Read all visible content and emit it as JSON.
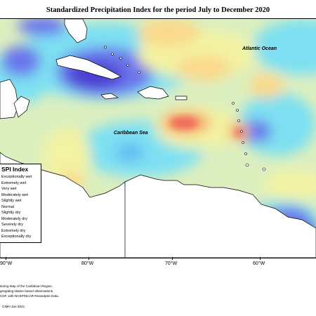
{
  "title": "Standardized Precipitation Index for the period July to December 2020",
  "labels": {
    "atlantic": "Atlantic Ocean",
    "caribbean": "Caribbean Sea"
  },
  "legend": {
    "title": "SPI Index",
    "items": [
      {
        "label": "Exceptionally wet",
        "color": "#4b3fd1"
      },
      {
        "label": "Extremely wet",
        "color": "#6a74ec"
      },
      {
        "label": "Very wet",
        "color": "#5fb6f2"
      },
      {
        "label": "Moderately wet",
        "color": "#7ee0f2"
      },
      {
        "label": "Slightly wet",
        "color": "#b7f0df"
      },
      {
        "label": "Normal",
        "color": "#dcefbf"
      },
      {
        "label": "Slightly dry",
        "color": "#f3f3a3"
      },
      {
        "label": "Moderately dry",
        "color": "#fbd98b"
      },
      {
        "label": "Severely dry",
        "color": "#f7a86d"
      },
      {
        "label": "Extremely dry",
        "color": "#f06a5a"
      },
      {
        "label": "Exceptionally dry",
        "color": "#d23a3a"
      }
    ]
  },
  "axis_ticks": [
    "90°W",
    "80°W",
    "70°W",
    "60°W"
  ],
  "note_lines": [
    "itoring Map of the Caribbean Region.",
    "gregating station based observations,",
    "CDF, with NCEP/NCAR Reanalysis Data."
  ],
  "credit": "CIMH Jan-2021"
}
